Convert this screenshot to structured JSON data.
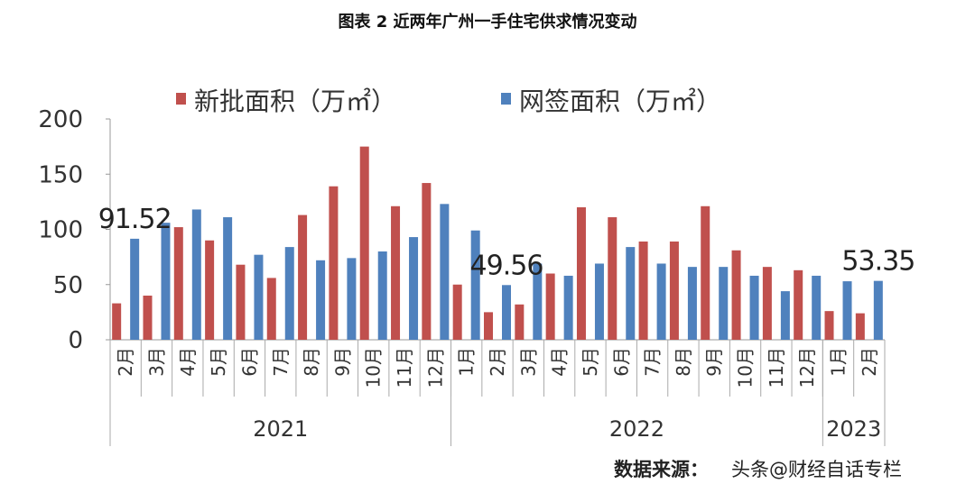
{
  "title": "图表 2  近两年广州一手住宅供求情况变动",
  "source_label": "数据来源：",
  "watermark": "头条@财经自话专栏",
  "colors": {
    "new": "#c0504d",
    "signed": "#4f81bd"
  },
  "chart_data": {
    "type": "bar",
    "title": "图表 2  近两年广州一手住宅供求情况变动",
    "xlabel": "",
    "ylabel": "",
    "ylim": [
      0,
      200
    ],
    "yticks": [
      0,
      50,
      100,
      150,
      200
    ],
    "legend": "top",
    "grid": false,
    "groups": [
      {
        "label": "2021",
        "count": 11
      },
      {
        "label": "2022",
        "count": 12
      },
      {
        "label": "2023",
        "count": 2
      }
    ],
    "categories": [
      "2月",
      "3月",
      "4月",
      "5月",
      "6月",
      "7月",
      "8月",
      "9月",
      "10月",
      "11月",
      "12月",
      "1月",
      "2月",
      "3月",
      "4月",
      "5月",
      "6月",
      "7月",
      "8月",
      "9月",
      "10月",
      "11月",
      "12月",
      "1月",
      "2月"
    ],
    "series": [
      {
        "name": "新批面积（万㎡）",
        "values": [
          33,
          40,
          102,
          90,
          68,
          56,
          113,
          139,
          175,
          121,
          142,
          50,
          25,
          32,
          60,
          120,
          111,
          89,
          89,
          121,
          81,
          66,
          63,
          26,
          24
        ]
      },
      {
        "name": "网签面积（万㎡）",
        "values": [
          91.52,
          106,
          118,
          111,
          77,
          84,
          72,
          74,
          80,
          93,
          123,
          99,
          49.56,
          69,
          58,
          69,
          84,
          69,
          66,
          66,
          58,
          44,
          58,
          53,
          53.35
        ]
      }
    ],
    "annotations": [
      {
        "text": "91.52",
        "index": 0
      },
      {
        "text": "49.56",
        "index": 12
      },
      {
        "text": "53.35",
        "index": 24
      }
    ]
  }
}
